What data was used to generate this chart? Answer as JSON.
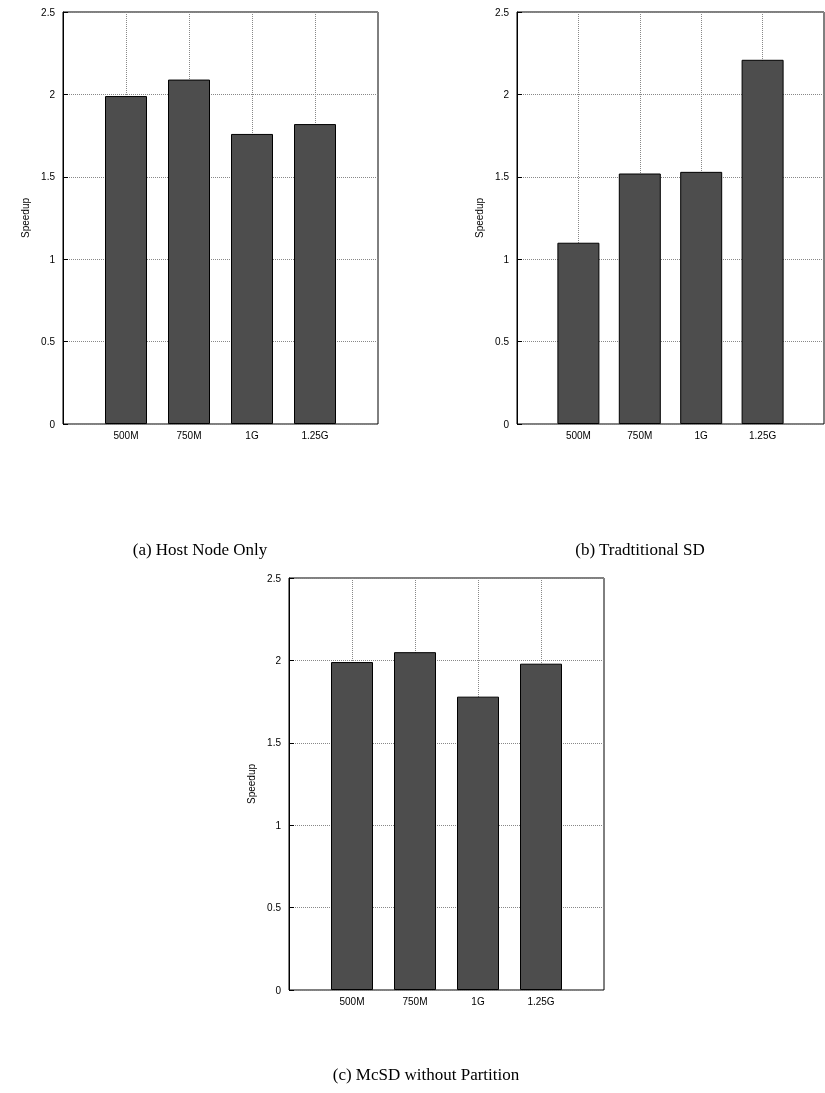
{
  "chart_data": [
    {
      "type": "bar",
      "title": "(a) Host Node Only",
      "ylabel": "Speedup",
      "categories": [
        "500M",
        "750M",
        "1G",
        "1.25G"
      ],
      "values": [
        1.99,
        2.09,
        1.76,
        1.82
      ],
      "color": "#4d4d4d",
      "ylim": [
        0,
        2.5
      ],
      "yticks": [
        0,
        0.5,
        1,
        1.5,
        2,
        2.5
      ],
      "grid": true
    },
    {
      "type": "bar",
      "title": "(b) Tradtitional SD",
      "ylabel": "Speedup",
      "categories": [
        "500M",
        "750M",
        "1G",
        "1.25G"
      ],
      "values": [
        1.1,
        1.52,
        1.53,
        2.21
      ],
      "color": "#4d4d4d",
      "ylim": [
        0,
        2.5
      ],
      "yticks": [
        0,
        0.5,
        1,
        1.5,
        2,
        2.5
      ],
      "grid": true
    },
    {
      "type": "bar",
      "title": "(c) McSD without Partition",
      "ylabel": "Speedup",
      "categories": [
        "500M",
        "750M",
        "1G",
        "1.25G"
      ],
      "values": [
        1.99,
        2.05,
        1.78,
        1.98
      ],
      "color": "#4d4d4d",
      "ylim": [
        0,
        2.5
      ],
      "yticks": [
        0,
        0.5,
        1,
        1.5,
        2,
        2.5
      ],
      "grid": true
    }
  ]
}
